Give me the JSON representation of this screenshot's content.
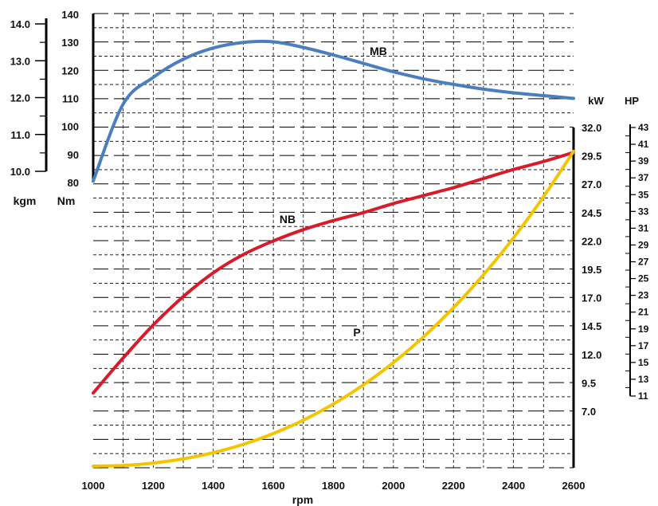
{
  "chart_data": {
    "type": "line",
    "x_label": "rpm",
    "x_ticks": [
      "1000",
      "1200",
      "1400",
      "1600",
      "1800",
      "2000",
      "2200",
      "2400",
      "2600"
    ],
    "axes": {
      "kgm": {
        "label": "kgm",
        "ticks": [
          "10.0",
          "11.0",
          "12.0",
          "13.0",
          "14.0"
        ]
      },
      "nm": {
        "label": "Nm",
        "ticks": [
          "80",
          "90",
          "100",
          "110",
          "120",
          "130",
          "140"
        ]
      },
      "kw": {
        "label": "kW",
        "ticks": [
          "7.0",
          "9.5",
          "12.0",
          "14.5",
          "17.0",
          "19.5",
          "22.0",
          "24.5",
          "27.0",
          "29.5",
          "32.0"
        ]
      },
      "hp": {
        "label": "HP",
        "ticks": [
          "11",
          "13",
          "15",
          "17",
          "19",
          "21",
          "23",
          "25",
          "27",
          "29",
          "31",
          "33",
          "35",
          "37",
          "39",
          "41",
          "43"
        ]
      }
    },
    "series": [
      {
        "name": "MB",
        "axis": "Nm",
        "color": "#4a7ebf",
        "x": [
          1000,
          1100,
          1200,
          1300,
          1400,
          1500,
          1600,
          1700,
          1800,
          1900,
          2000,
          2100,
          2200,
          2300,
          2400,
          2500,
          2600
        ],
        "y": [
          80.5,
          108,
          117.5,
          124,
          128,
          130,
          130.2,
          128.2,
          125.5,
          122.5,
          119.5,
          117,
          115,
          113.3,
          112,
          111,
          110
        ]
      },
      {
        "name": "NB",
        "axis": "kW",
        "color": "#d81b2a",
        "x": [
          1000,
          1100,
          1200,
          1300,
          1400,
          1500,
          1600,
          1700,
          1800,
          1900,
          2000,
          2100,
          2200,
          2300,
          2400,
          2500,
          2600
        ],
        "y": [
          8.6,
          11.7,
          14.6,
          17.1,
          19.2,
          20.8,
          22.0,
          23.0,
          23.8,
          24.5,
          25.3,
          26.0,
          26.7,
          27.5,
          28.3,
          29.0,
          29.8
        ]
      },
      {
        "name": "P",
        "axis": "none",
        "color": "#f2c500",
        "x": [
          1000,
          1100,
          1200,
          1300,
          1400,
          1500,
          1600,
          1700,
          1800,
          1900,
          2000,
          2100,
          2200,
          2300,
          2400,
          2500,
          2600
        ]
      }
    ],
    "grid": true,
    "legend": "none"
  }
}
